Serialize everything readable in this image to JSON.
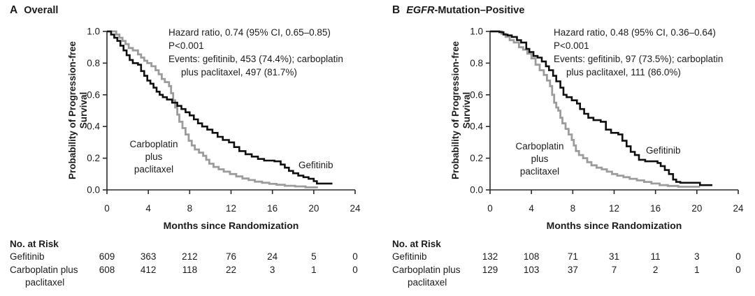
{
  "figure": {
    "background": "#ffffff",
    "text_color": "#1c1c1c",
    "black_curve_color": "#0f0f0f",
    "gray_curve_color": "#9c9c9c",
    "axis_color": "#2a2a2a"
  },
  "chart_data": [
    {
      "type": "line",
      "subtype": "kaplan-meier-step",
      "panel_label": "A",
      "title": "Overall",
      "title_parts": [
        {
          "text": "Overall",
          "italic": false
        }
      ],
      "xlabel": "Months since Randomization",
      "ylabel_lines": [
        "Probability of Progression-free",
        "Survival"
      ],
      "xlim": [
        0,
        24
      ],
      "ylim": [
        0.0,
        1.0
      ],
      "x_ticks": [
        0,
        4,
        8,
        12,
        16,
        20,
        24
      ],
      "y_ticks": [
        "1.0",
        "0.8",
        "0.6",
        "0.4",
        "0.2",
        "0.0"
      ],
      "grid": false,
      "legend": "direct-labels",
      "annotation_lines": [
        "Hazard ratio, 0.74 (95% CI, 0.65–0.85)",
        "P<0.001",
        "Events: gefitinib, 453 (74.4%); carboplatin",
        "plus paclitaxel, 497 (81.7%)"
      ],
      "series": [
        {
          "name": "Gefitinib",
          "color": "#0f0f0f",
          "label": "Gefitinib",
          "points": [
            [
              0,
              1.0
            ],
            [
              0.4,
              0.98
            ],
            [
              0.7,
              0.96
            ],
            [
              1.0,
              0.94
            ],
            [
              1.3,
              0.91
            ],
            [
              1.6,
              0.88
            ],
            [
              1.9,
              0.85
            ],
            [
              2.2,
              0.82
            ],
            [
              2.5,
              0.8
            ],
            [
              3.0,
              0.79
            ],
            [
              3.3,
              0.75
            ],
            [
              3.6,
              0.72
            ],
            [
              3.9,
              0.69
            ],
            [
              4.2,
              0.67
            ],
            [
              4.5,
              0.645
            ],
            [
              4.8,
              0.62
            ],
            [
              5.1,
              0.6
            ],
            [
              5.4,
              0.585
            ],
            [
              5.8,
              0.57
            ],
            [
              6.3,
              0.55
            ],
            [
              6.8,
              0.53
            ],
            [
              7.2,
              0.51
            ],
            [
              7.6,
              0.49
            ],
            [
              8.0,
              0.47
            ],
            [
              8.4,
              0.445
            ],
            [
              8.8,
              0.42
            ],
            [
              9.2,
              0.4
            ],
            [
              9.7,
              0.38
            ],
            [
              10.2,
              0.36
            ],
            [
              10.7,
              0.335
            ],
            [
              11.2,
              0.315
            ],
            [
              11.8,
              0.3
            ],
            [
              12.3,
              0.27
            ],
            [
              12.8,
              0.245
            ],
            [
              13.4,
              0.225
            ],
            [
              14.0,
              0.21
            ],
            [
              14.6,
              0.195
            ],
            [
              15.2,
              0.185
            ],
            [
              16.2,
              0.18
            ],
            [
              16.8,
              0.16
            ],
            [
              17.2,
              0.14
            ],
            [
              17.6,
              0.12
            ],
            [
              18.0,
              0.105
            ],
            [
              18.5,
              0.09
            ],
            [
              19.0,
              0.08
            ],
            [
              19.5,
              0.07
            ],
            [
              20.0,
              0.055
            ],
            [
              20.3,
              0.04
            ],
            [
              21.8,
              0.04
            ]
          ]
        },
        {
          "name": "Carboplatin plus paclitaxel",
          "color": "#9c9c9c",
          "label_lines": [
            "Carboplatin",
            "plus",
            "paclitaxel"
          ],
          "points": [
            [
              0,
              1.0
            ],
            [
              0.9,
              0.98
            ],
            [
              1.2,
              0.96
            ],
            [
              1.5,
              0.94
            ],
            [
              1.8,
              0.92
            ],
            [
              2.1,
              0.895
            ],
            [
              2.5,
              0.88
            ],
            [
              3.0,
              0.855
            ],
            [
              3.3,
              0.835
            ],
            [
              3.6,
              0.815
            ],
            [
              3.9,
              0.8
            ],
            [
              4.3,
              0.78
            ],
            [
              4.7,
              0.755
            ],
            [
              5.0,
              0.73
            ],
            [
              5.3,
              0.7
            ],
            [
              5.6,
              0.68
            ],
            [
              6.0,
              0.655
            ],
            [
              6.2,
              0.61
            ],
            [
              6.4,
              0.565
            ],
            [
              6.6,
              0.52
            ],
            [
              6.8,
              0.475
            ],
            [
              7.0,
              0.43
            ],
            [
              7.3,
              0.39
            ],
            [
              7.6,
              0.35
            ],
            [
              7.9,
              0.31
            ],
            [
              8.2,
              0.28
            ],
            [
              8.5,
              0.255
            ],
            [
              8.9,
              0.235
            ],
            [
              9.3,
              0.215
            ],
            [
              9.6,
              0.19
            ],
            [
              9.9,
              0.165
            ],
            [
              10.3,
              0.145
            ],
            [
              10.8,
              0.13
            ],
            [
              11.3,
              0.115
            ],
            [
              11.9,
              0.1
            ],
            [
              12.5,
              0.085
            ],
            [
              13.1,
              0.072
            ],
            [
              13.7,
              0.062
            ],
            [
              14.3,
              0.052
            ],
            [
              15.0,
              0.045
            ],
            [
              15.7,
              0.038
            ],
            [
              16.4,
              0.032
            ],
            [
              17.2,
              0.026
            ],
            [
              18.2,
              0.022
            ],
            [
              19.2,
              0.016
            ],
            [
              20.4,
              0.016
            ]
          ]
        }
      ],
      "risk_table": {
        "header": "No. at Risk",
        "time_points": [
          0,
          4,
          8,
          12,
          16,
          20,
          24
        ],
        "rows": [
          {
            "label_lines": [
              "Gefitinib"
            ],
            "counts": [
              609,
              363,
              212,
              76,
              24,
              5,
              0
            ]
          },
          {
            "label_lines": [
              "Carboplatin plus",
              "paclitaxel"
            ],
            "counts": [
              608,
              412,
              118,
              22,
              3,
              1,
              0
            ]
          }
        ]
      }
    },
    {
      "type": "line",
      "subtype": "kaplan-meier-step",
      "panel_label": "B",
      "title": "EGFR-Mutation–Positive",
      "title_parts": [
        {
          "text": "EGFR",
          "italic": true
        },
        {
          "text": "-Mutation–Positive",
          "italic": false
        }
      ],
      "xlabel": "Months since Randomization",
      "ylabel_lines": [
        "Probability of Progression-free",
        "Survival"
      ],
      "xlim": [
        0,
        24
      ],
      "ylim": [
        0.0,
        1.0
      ],
      "x_ticks": [
        0,
        4,
        8,
        12,
        16,
        20,
        24
      ],
      "y_ticks": [
        "1.0",
        "0.8",
        "0.6",
        "0.4",
        "0.2",
        "0.0"
      ],
      "grid": false,
      "legend": "direct-labels",
      "annotation_lines": [
        "Hazard ratio, 0.48 (95% CI, 0.36–0.64)",
        "P<0.001",
        "Events: gefitinib, 97 (73.5%); carboplatin",
        "plus paclitaxel, 111 (86.0%)"
      ],
      "series": [
        {
          "name": "Gefitinib",
          "color": "#0f0f0f",
          "label": "Gefitinib",
          "points": [
            [
              0,
              1.0
            ],
            [
              0.9,
              0.995
            ],
            [
              1.3,
              0.98
            ],
            [
              1.7,
              0.975
            ],
            [
              2.1,
              0.965
            ],
            [
              2.6,
              0.945
            ],
            [
              3.0,
              0.93
            ],
            [
              3.5,
              0.89
            ],
            [
              3.8,
              0.87
            ],
            [
              4.2,
              0.845
            ],
            [
              4.6,
              0.835
            ],
            [
              5.0,
              0.81
            ],
            [
              5.4,
              0.78
            ],
            [
              5.7,
              0.755
            ],
            [
              6.1,
              0.72
            ],
            [
              6.4,
              0.685
            ],
            [
              6.8,
              0.645
            ],
            [
              7.1,
              0.6
            ],
            [
              7.4,
              0.585
            ],
            [
              7.9,
              0.565
            ],
            [
              8.4,
              0.545
            ],
            [
              8.7,
              0.51
            ],
            [
              9.1,
              0.48
            ],
            [
              9.5,
              0.455
            ],
            [
              10.0,
              0.44
            ],
            [
              10.7,
              0.43
            ],
            [
              11.2,
              0.38
            ],
            [
              11.7,
              0.36
            ],
            [
              12.4,
              0.35
            ],
            [
              12.8,
              0.31
            ],
            [
              13.2,
              0.275
            ],
            [
              13.6,
              0.24
            ],
            [
              14.0,
              0.22
            ],
            [
              14.4,
              0.19
            ],
            [
              15.0,
              0.18
            ],
            [
              16.2,
              0.17
            ],
            [
              16.5,
              0.15
            ],
            [
              16.9,
              0.125
            ],
            [
              17.3,
              0.1
            ],
            [
              17.7,
              0.065
            ],
            [
              18.0,
              0.05
            ],
            [
              18.4,
              0.045
            ],
            [
              20.3,
              0.03
            ],
            [
              21.5,
              0.03
            ]
          ]
        },
        {
          "name": "Carboplatin plus paclitaxel",
          "color": "#9c9c9c",
          "label_lines": [
            "Carboplatin",
            "plus",
            "paclitaxel"
          ],
          "points": [
            [
              0,
              1.0
            ],
            [
              1.1,
              0.985
            ],
            [
              1.5,
              0.965
            ],
            [
              1.9,
              0.945
            ],
            [
              2.3,
              0.93
            ],
            [
              2.8,
              0.9
            ],
            [
              3.2,
              0.885
            ],
            [
              3.6,
              0.86
            ],
            [
              4.0,
              0.83
            ],
            [
              4.4,
              0.79
            ],
            [
              4.8,
              0.755
            ],
            [
              5.2,
              0.725
            ],
            [
              5.5,
              0.69
            ],
            [
              5.8,
              0.655
            ],
            [
              6.0,
              0.6
            ],
            [
              6.2,
              0.55
            ],
            [
              6.4,
              0.52
            ],
            [
              6.6,
              0.5
            ],
            [
              6.8,
              0.455
            ],
            [
              7.0,
              0.42
            ],
            [
              7.3,
              0.385
            ],
            [
              7.6,
              0.35
            ],
            [
              7.9,
              0.315
            ],
            [
              8.1,
              0.28
            ],
            [
              8.3,
              0.245
            ],
            [
              8.6,
              0.22
            ],
            [
              9.0,
              0.2
            ],
            [
              9.4,
              0.175
            ],
            [
              9.8,
              0.155
            ],
            [
              10.3,
              0.14
            ],
            [
              10.8,
              0.13
            ],
            [
              11.3,
              0.115
            ],
            [
              11.8,
              0.1
            ],
            [
              12.3,
              0.09
            ],
            [
              12.9,
              0.08
            ],
            [
              13.5,
              0.07
            ],
            [
              14.2,
              0.06
            ],
            [
              14.9,
              0.05
            ],
            [
              15.6,
              0.04
            ],
            [
              16.4,
              0.03
            ],
            [
              17.2,
              0.025
            ],
            [
              18.2,
              0.02
            ],
            [
              20.3,
              0.02
            ]
          ]
        }
      ],
      "risk_table": {
        "header": "No. at Risk",
        "time_points": [
          0,
          4,
          8,
          12,
          16,
          20,
          24
        ],
        "rows": [
          {
            "label_lines": [
              "Gefitinib"
            ],
            "counts": [
              132,
              108,
              71,
              31,
              11,
              3,
              0
            ]
          },
          {
            "label_lines": [
              "Carboplatin plus",
              "paclitaxel"
            ],
            "counts": [
              129,
              103,
              37,
              7,
              2,
              1,
              0
            ]
          }
        ]
      }
    }
  ]
}
